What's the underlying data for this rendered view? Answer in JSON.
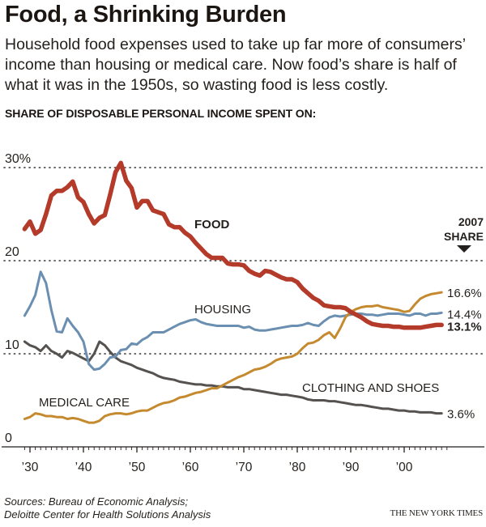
{
  "header": {
    "title": "Food, a Shrinking Burden",
    "subtitle": "Household food expenses used to take up far more of consumers’ income than housing or medical care. Now food’s share is half of what it was in the 1950s, so wasting food is less costly.",
    "section_label": "SHARE OF DISPOSABLE PERSONAL INCOME SPENT ON:"
  },
  "footer": {
    "source_line1": "Sources: Bureau of Economic Analysis;",
    "source_line2": "Deloitte Center for Health Solutions Analysis",
    "credit": "THE NEW YORK TIMES"
  },
  "chart_data": {
    "type": "line",
    "title": "SHARE OF DISPOSABLE PERSONAL INCOME SPENT ON:",
    "xlabel": "",
    "ylabel": "",
    "xlim": [
      1929,
      2008
    ],
    "ylim": [
      0,
      30
    ],
    "grid": true,
    "y_ticks": [
      {
        "value": 0,
        "label": "0"
      },
      {
        "value": 10,
        "label": "10"
      },
      {
        "value": 20,
        "label": "20"
      },
      {
        "value": 30,
        "label": "30%"
      }
    ],
    "x_ticks": [
      {
        "value": 1930,
        "label": "’30"
      },
      {
        "value": 1940,
        "label": "’40"
      },
      {
        "value": 1950,
        "label": "’50"
      },
      {
        "value": 1960,
        "label": "’60"
      },
      {
        "value": 1970,
        "label": "’70"
      },
      {
        "value": 1980,
        "label": "’80"
      },
      {
        "value": 1990,
        "label": "’90"
      },
      {
        "value": 2000,
        "label": "’00"
      }
    ],
    "minor_tick_range": [
      1929,
      2008
    ],
    "end_annotation": {
      "line1": "2007",
      "line2": "SHARE"
    },
    "x_start": 1929,
    "series": [
      {
        "name": "FOOD",
        "color": "#b43a2a",
        "end_label": "13.1%",
        "bold": true,
        "values": [
          23.4,
          24.2,
          22.9,
          23.3,
          25.0,
          27.0,
          27.5,
          27.5,
          27.9,
          28.5,
          26.8,
          26.3,
          25.0,
          24.0,
          24.6,
          24.9,
          27.1,
          29.5,
          30.5,
          28.6,
          27.8,
          25.7,
          26.4,
          26.4,
          25.4,
          25.2,
          25.0,
          23.9,
          23.6,
          23.6,
          23.0,
          22.6,
          21.9,
          21.3,
          20.7,
          20.3,
          20.3,
          20.3,
          19.7,
          19.6,
          19.6,
          19.5,
          18.9,
          18.6,
          18.4,
          18.9,
          18.8,
          18.5,
          18.2,
          18.0,
          18.0,
          17.7,
          17.0,
          16.5,
          16.0,
          15.7,
          15.2,
          15.1,
          15.0,
          15.0,
          14.9,
          14.5,
          14.2,
          13.9,
          13.5,
          13.2,
          13.1,
          13.0,
          13.0,
          12.9,
          12.9,
          12.8,
          12.8,
          12.8,
          12.8,
          12.9,
          13.0,
          13.1,
          13.1
        ]
      },
      {
        "name": "HOUSING",
        "color": "#6b8fb0",
        "end_label": "14.4%",
        "bold": false,
        "values": [
          14.1,
          15.1,
          16.3,
          18.8,
          17.6,
          14.7,
          12.4,
          12.3,
          13.8,
          13.0,
          12.3,
          11.3,
          8.9,
          8.3,
          8.4,
          8.9,
          9.6,
          9.7,
          10.4,
          10.5,
          11.1,
          11.0,
          11.5,
          11.8,
          12.3,
          12.3,
          12.3,
          12.6,
          12.9,
          13.2,
          13.4,
          13.6,
          13.7,
          13.4,
          13.2,
          13.1,
          13.0,
          13.0,
          13.0,
          13.0,
          13.0,
          12.8,
          12.9,
          12.6,
          12.5,
          12.5,
          12.6,
          12.7,
          12.8,
          12.9,
          13.0,
          13.0,
          13.1,
          13.3,
          13.1,
          13.0,
          13.5,
          13.9,
          14.1,
          14.0,
          14.1,
          14.2,
          14.3,
          14.3,
          14.2,
          14.2,
          14.1,
          14.2,
          14.3,
          14.3,
          14.3,
          14.2,
          14.1,
          14.3,
          14.3,
          14.1,
          14.3,
          14.3,
          14.4
        ]
      },
      {
        "name": "MEDICAL CARE",
        "color": "#c58a2f",
        "end_label": "16.6%",
        "bold": false,
        "values": [
          3.0,
          3.2,
          3.6,
          3.5,
          3.3,
          3.3,
          3.2,
          3.2,
          3.0,
          3.1,
          3.0,
          2.8,
          2.6,
          2.6,
          2.8,
          3.3,
          3.5,
          3.6,
          3.6,
          3.5,
          3.6,
          3.8,
          3.9,
          3.9,
          4.2,
          4.5,
          4.7,
          4.8,
          5.0,
          5.3,
          5.4,
          5.6,
          5.8,
          5.9,
          6.1,
          6.3,
          6.3,
          6.6,
          6.9,
          7.2,
          7.5,
          7.7,
          8.0,
          8.3,
          8.4,
          8.6,
          8.9,
          9.3,
          9.5,
          9.6,
          9.7,
          10.0,
          10.6,
          11.1,
          11.2,
          11.5,
          12.0,
          12.3,
          11.7,
          12.7,
          13.9,
          14.5,
          14.8,
          15.0,
          15.1,
          15.1,
          15.2,
          15.0,
          14.9,
          14.8,
          14.7,
          14.5,
          14.6,
          15.3,
          15.9,
          16.2,
          16.4,
          16.5,
          16.6
        ]
      },
      {
        "name": "CLOTHING AND SHOES",
        "color": "#555250",
        "end_label": "3.6%",
        "bold": false,
        "values": [
          11.3,
          10.9,
          10.7,
          10.3,
          10.9,
          10.3,
          10.0,
          9.6,
          10.3,
          10.1,
          9.8,
          9.5,
          9.2,
          10.0,
          11.3,
          10.9,
          10.2,
          9.6,
          9.2,
          9.0,
          8.8,
          8.5,
          8.3,
          8.1,
          7.9,
          7.6,
          7.4,
          7.3,
          7.2,
          7.0,
          6.9,
          6.8,
          6.7,
          6.7,
          6.6,
          6.6,
          6.5,
          6.5,
          6.4,
          6.4,
          6.4,
          6.2,
          6.2,
          6.1,
          6.0,
          5.9,
          5.8,
          5.7,
          5.6,
          5.6,
          5.5,
          5.4,
          5.3,
          5.1,
          5.0,
          5.0,
          5.0,
          4.9,
          4.9,
          4.8,
          4.7,
          4.6,
          4.5,
          4.5,
          4.4,
          4.3,
          4.2,
          4.1,
          4.1,
          4.0,
          3.9,
          3.9,
          3.8,
          3.8,
          3.7,
          3.7,
          3.7,
          3.6,
          3.6
        ]
      }
    ]
  }
}
